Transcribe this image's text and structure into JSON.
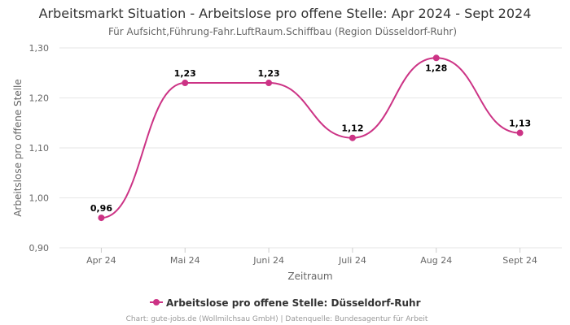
{
  "title": "Arbeitsmarkt Situation - Arbeitslose pro offene Stelle: Apr 2024 - Sept 2024",
  "subtitle": "Für Aufsicht,Führung-Fahr.LuftRaum.Schiffbau (Region Düsseldorf-Ruhr)",
  "credits": "Chart: gute-jobs.de (Wollmilchsau GmbH) | Datenquelle: Bundesagentur für Arbeit",
  "colors": {
    "series": "#cc3385",
    "grid": "#e6e6e6"
  },
  "chart_data": {
    "type": "line",
    "smooth": true,
    "categories": [
      "Apr 24",
      "Mai 24",
      "Juni 24",
      "Juli 24",
      "Aug 24",
      "Sept 24"
    ],
    "series": [
      {
        "name": "Arbeitslose pro offene Stelle: Düsseldorf-Ruhr",
        "values": [
          0.96,
          1.23,
          1.23,
          1.12,
          1.28,
          1.13
        ],
        "labels": [
          "0,96",
          "1,23",
          "1,23",
          "1,12",
          "1,28",
          "1,13"
        ]
      }
    ],
    "xlabel": "Zeitraum",
    "ylabel": "Arbeitslose pro offene Stelle",
    "ylim": [
      0.9,
      1.3
    ],
    "yticks": [
      0.9,
      1.0,
      1.1,
      1.2,
      1.3
    ],
    "ytick_labels": [
      "0,90",
      "1,00",
      "1,10",
      "1,20",
      "1,30"
    ],
    "grid": true,
    "legend_position": "bottom-center"
  }
}
